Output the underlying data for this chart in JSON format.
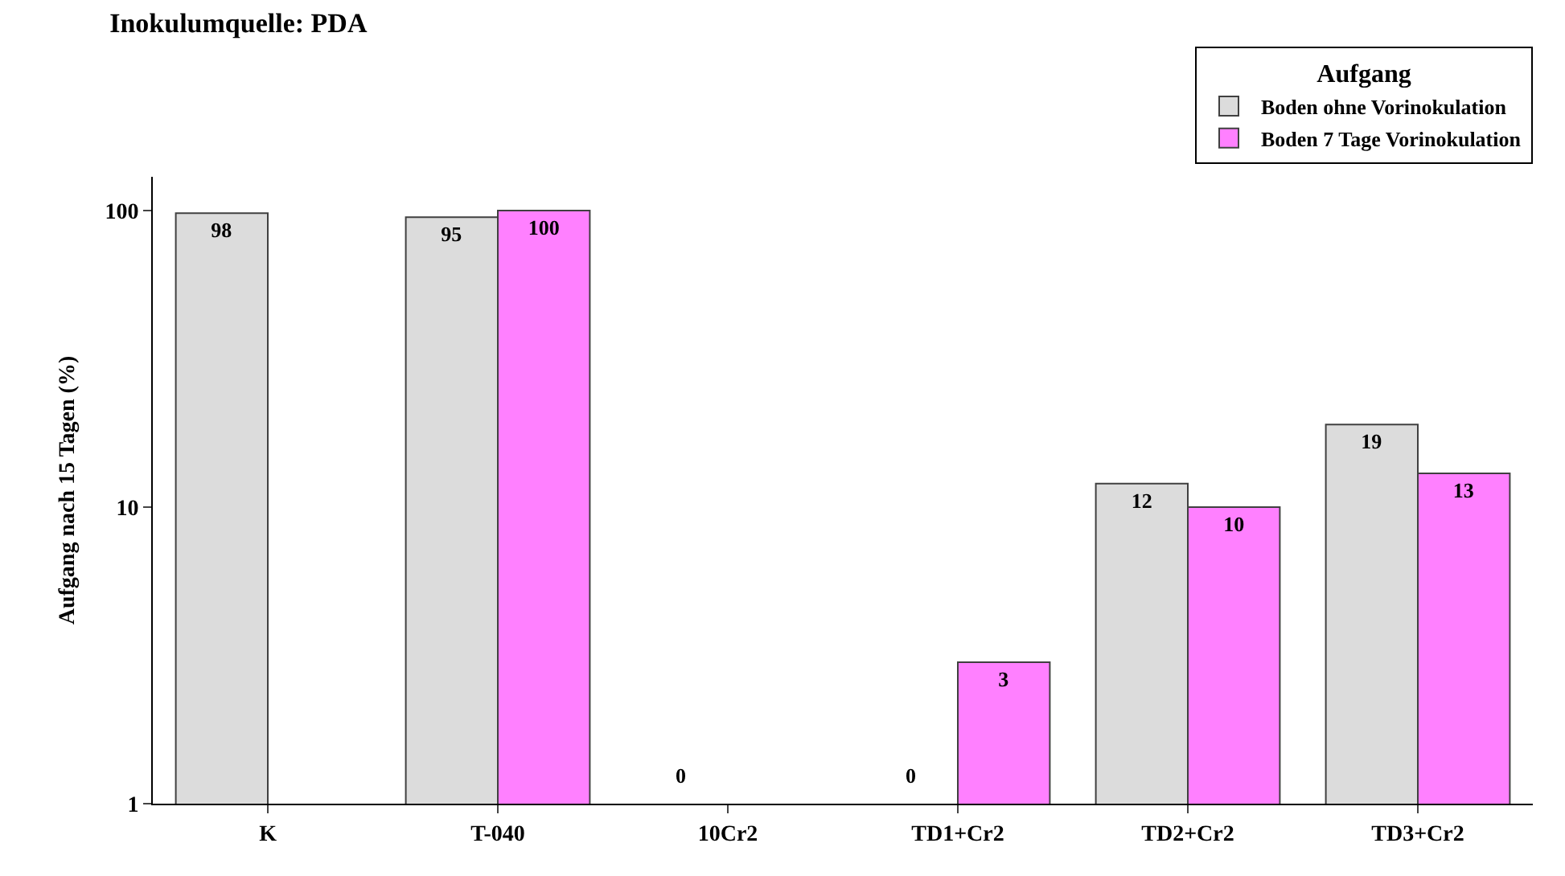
{
  "chart_data": {
    "type": "bar",
    "title": "Inokulumquelle: PDA",
    "ylabel": "Aufgang nach 15 Tagen (%)",
    "legend_title": "Aufgang",
    "categories": [
      "K",
      "T-040",
      "10Cr2",
      "TD1+Cr2",
      "TD2+Cr2",
      "TD3+Cr2"
    ],
    "series": [
      {
        "name": "Boden ohne Vorinokulation",
        "color": "#dcdcdc",
        "values": [
          98,
          95,
          null,
          null,
          12,
          19
        ],
        "value_labels": [
          "98",
          "95",
          null,
          null,
          "12",
          "19"
        ]
      },
      {
        "name": "Boden 7 Tage Vorinokulation",
        "color": "#ff80ff",
        "values": [
          null,
          100,
          null,
          3,
          10,
          13
        ],
        "value_labels": [
          null,
          "100",
          null,
          "3",
          "10",
          "13"
        ]
      }
    ],
    "annotations": [
      "0",
      "0"
    ],
    "log": "y",
    "ylim": [
      1,
      130
    ],
    "yticks": [
      1,
      10,
      100
    ],
    "legend": "top right"
  }
}
